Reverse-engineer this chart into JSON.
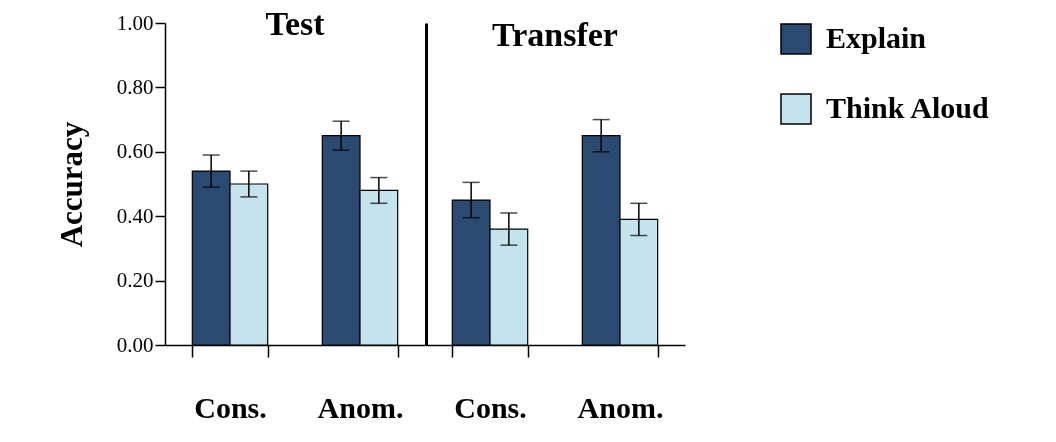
{
  "chart_data": [
    {
      "type": "bar",
      "title": "Test",
      "ylabel": "Accuracy",
      "categories": [
        "Cons.",
        "Anom."
      ],
      "ylim": [
        0,
        1
      ],
      "yticks": [
        {
          "value": 0,
          "label": "0.00"
        },
        {
          "value": 0.2,
          "label": "0.20"
        },
        {
          "value": 0.4,
          "label": "0.40"
        },
        {
          "value": 0.6,
          "label": "0.60"
        },
        {
          "value": 0.8,
          "label": "0.80"
        },
        {
          "value": 1,
          "label": "1.00"
        }
      ],
      "series": [
        {
          "color": "#2a4a72",
          "values": [
            0.54,
            0.65
          ],
          "errors": [
            0.05,
            0.045
          ]
        },
        {
          "color": "#c5e3ec",
          "values": [
            0.5,
            0.48
          ],
          "errors": [
            0.04,
            0.04
          ]
        }
      ],
      "legend": false
    },
    {
      "type": "bar",
      "title": "Transfer",
      "categories": [
        "Cons.",
        "Anom."
      ],
      "ylim": [
        0,
        1
      ],
      "tick_labels": "x",
      "series": [
        {
          "name": "Explain",
          "color": "#2a4a72",
          "values": [
            0.45,
            0.65
          ],
          "errors": [
            0.055,
            0.05
          ]
        },
        {
          "name": "Think Aloud",
          "color": "#c5e3ec",
          "values": [
            0.36,
            0.39
          ],
          "errors": [
            0.05,
            0.05
          ]
        }
      ],
      "legend": "right"
    }
  ]
}
